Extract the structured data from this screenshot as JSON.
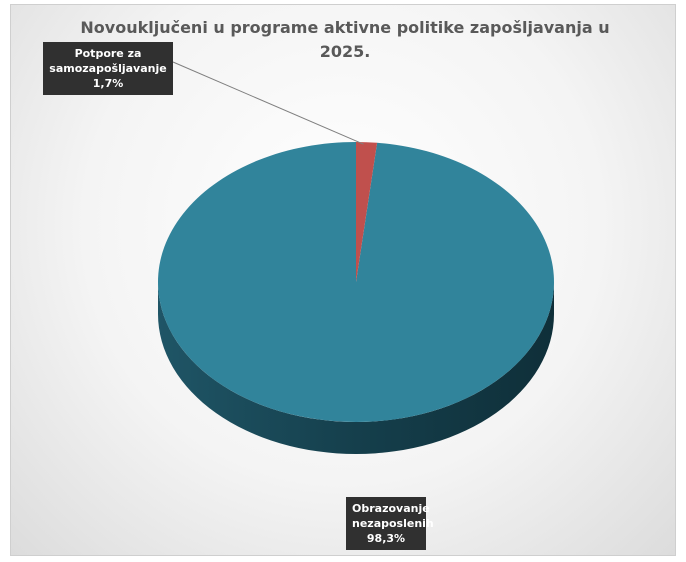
{
  "chart_data": {
    "type": "pie",
    "title": "Novouključeni u programe aktivne politike zapošljavanja u 2025.",
    "slices": [
      {
        "name": "Obrazovanje nezaposlenih",
        "value": 98.3,
        "value_label": "98,3%",
        "color": "#31849B"
      },
      {
        "name": "Potpore za samozapošljavanje",
        "value": 1.7,
        "value_label": "1,7%",
        "color": "#C0504D"
      }
    ],
    "style": "3d",
    "legend": "none",
    "data_labels": "callout"
  },
  "labels": {
    "self_employment": {
      "line1": "Potpore za",
      "line2": "samozapošljavanje",
      "value": "1,7%"
    },
    "education": {
      "line1": "Obrazovanje",
      "line2": "nezaposlenih",
      "value": "98,3%"
    }
  }
}
